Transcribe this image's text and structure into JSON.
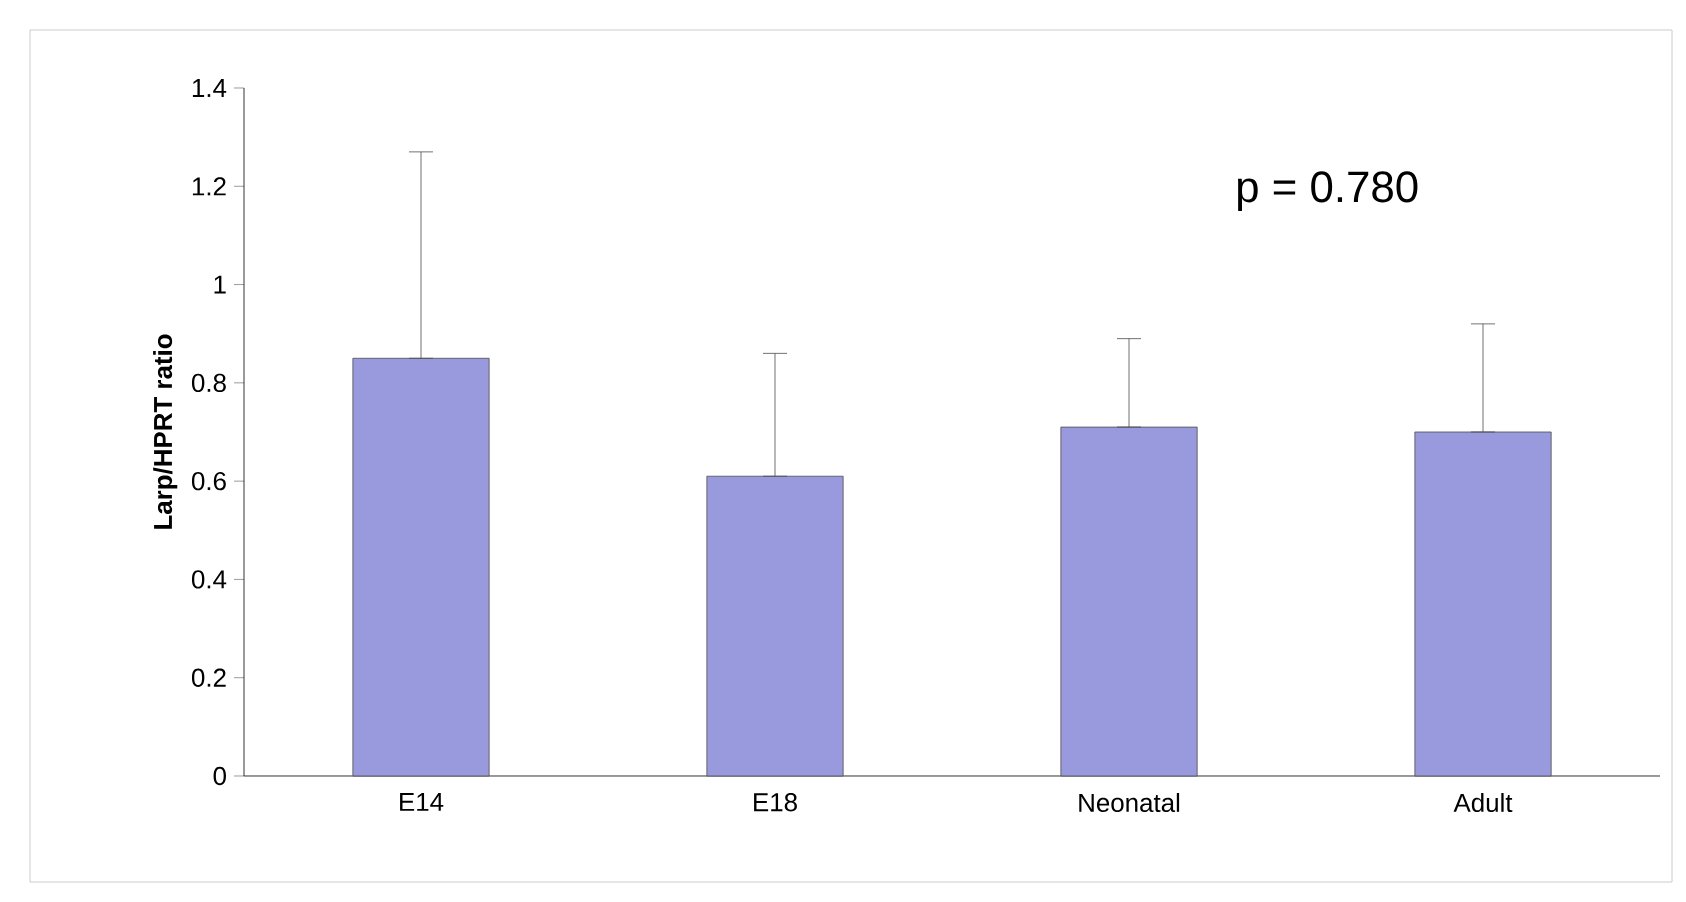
{
  "chart_data": {
    "type": "bar",
    "ylabel": "Larp/HPRT ratio",
    "categories": [
      "E14",
      "E18",
      "Neonatal",
      "Adult"
    ],
    "values": [
      0.85,
      0.61,
      0.71,
      0.7
    ],
    "errors": [
      [
        0.85,
        1.27
      ],
      [
        0.61,
        0.86
      ],
      [
        0.71,
        0.89
      ],
      [
        0.7,
        0.92
      ]
    ],
    "color": "#9999dd",
    "ylim": [
      0,
      1.4
    ],
    "yticks": [
      0,
      0.2,
      0.4,
      0.6,
      0.8,
      1,
      1.2,
      1.4
    ],
    "grid": false,
    "annotations": [
      "p = 0.780"
    ]
  }
}
